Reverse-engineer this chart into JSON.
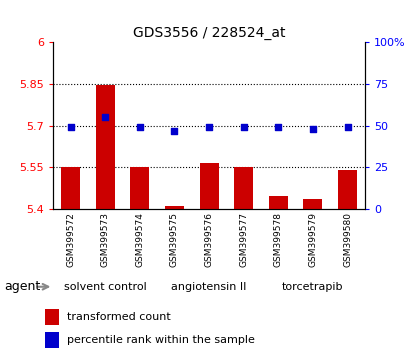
{
  "title": "GDS3556 / 228524_at",
  "samples": [
    "GSM399572",
    "GSM399573",
    "GSM399574",
    "GSM399575",
    "GSM399576",
    "GSM399577",
    "GSM399578",
    "GSM399579",
    "GSM399580"
  ],
  "bar_values": [
    5.55,
    5.848,
    5.55,
    5.41,
    5.565,
    5.55,
    5.445,
    5.435,
    5.54
  ],
  "dot_values": [
    49,
    55,
    49,
    47,
    49,
    49,
    49,
    48,
    49
  ],
  "ylim_left": [
    5.4,
    6.0
  ],
  "ylim_right": [
    0,
    100
  ],
  "yticks_left": [
    5.4,
    5.55,
    5.7,
    5.85,
    6.0
  ],
  "yticks_right": [
    0,
    25,
    50,
    75,
    100
  ],
  "ytick_labels_left": [
    "5.4",
    "5.55",
    "5.7",
    "5.85",
    "6"
  ],
  "ytick_labels_right": [
    "0",
    "25",
    "50",
    "75",
    "100%"
  ],
  "groups": [
    {
      "label": "solvent control",
      "start": 0,
      "end": 3,
      "color": "#90EE90"
    },
    {
      "label": "angiotensin II",
      "start": 3,
      "end": 6,
      "color": "#90EE90"
    },
    {
      "label": "torcetrapib",
      "start": 6,
      "end": 9,
      "color": "#3ADF00"
    }
  ],
  "bar_color": "#CC0000",
  "dot_color": "#0000CC",
  "bar_baseline": 5.4,
  "grid_yticks": [
    5.55,
    5.7,
    5.85
  ],
  "agent_label": "agent",
  "legend_bar_label": "transformed count",
  "legend_dot_label": "percentile rank within the sample"
}
